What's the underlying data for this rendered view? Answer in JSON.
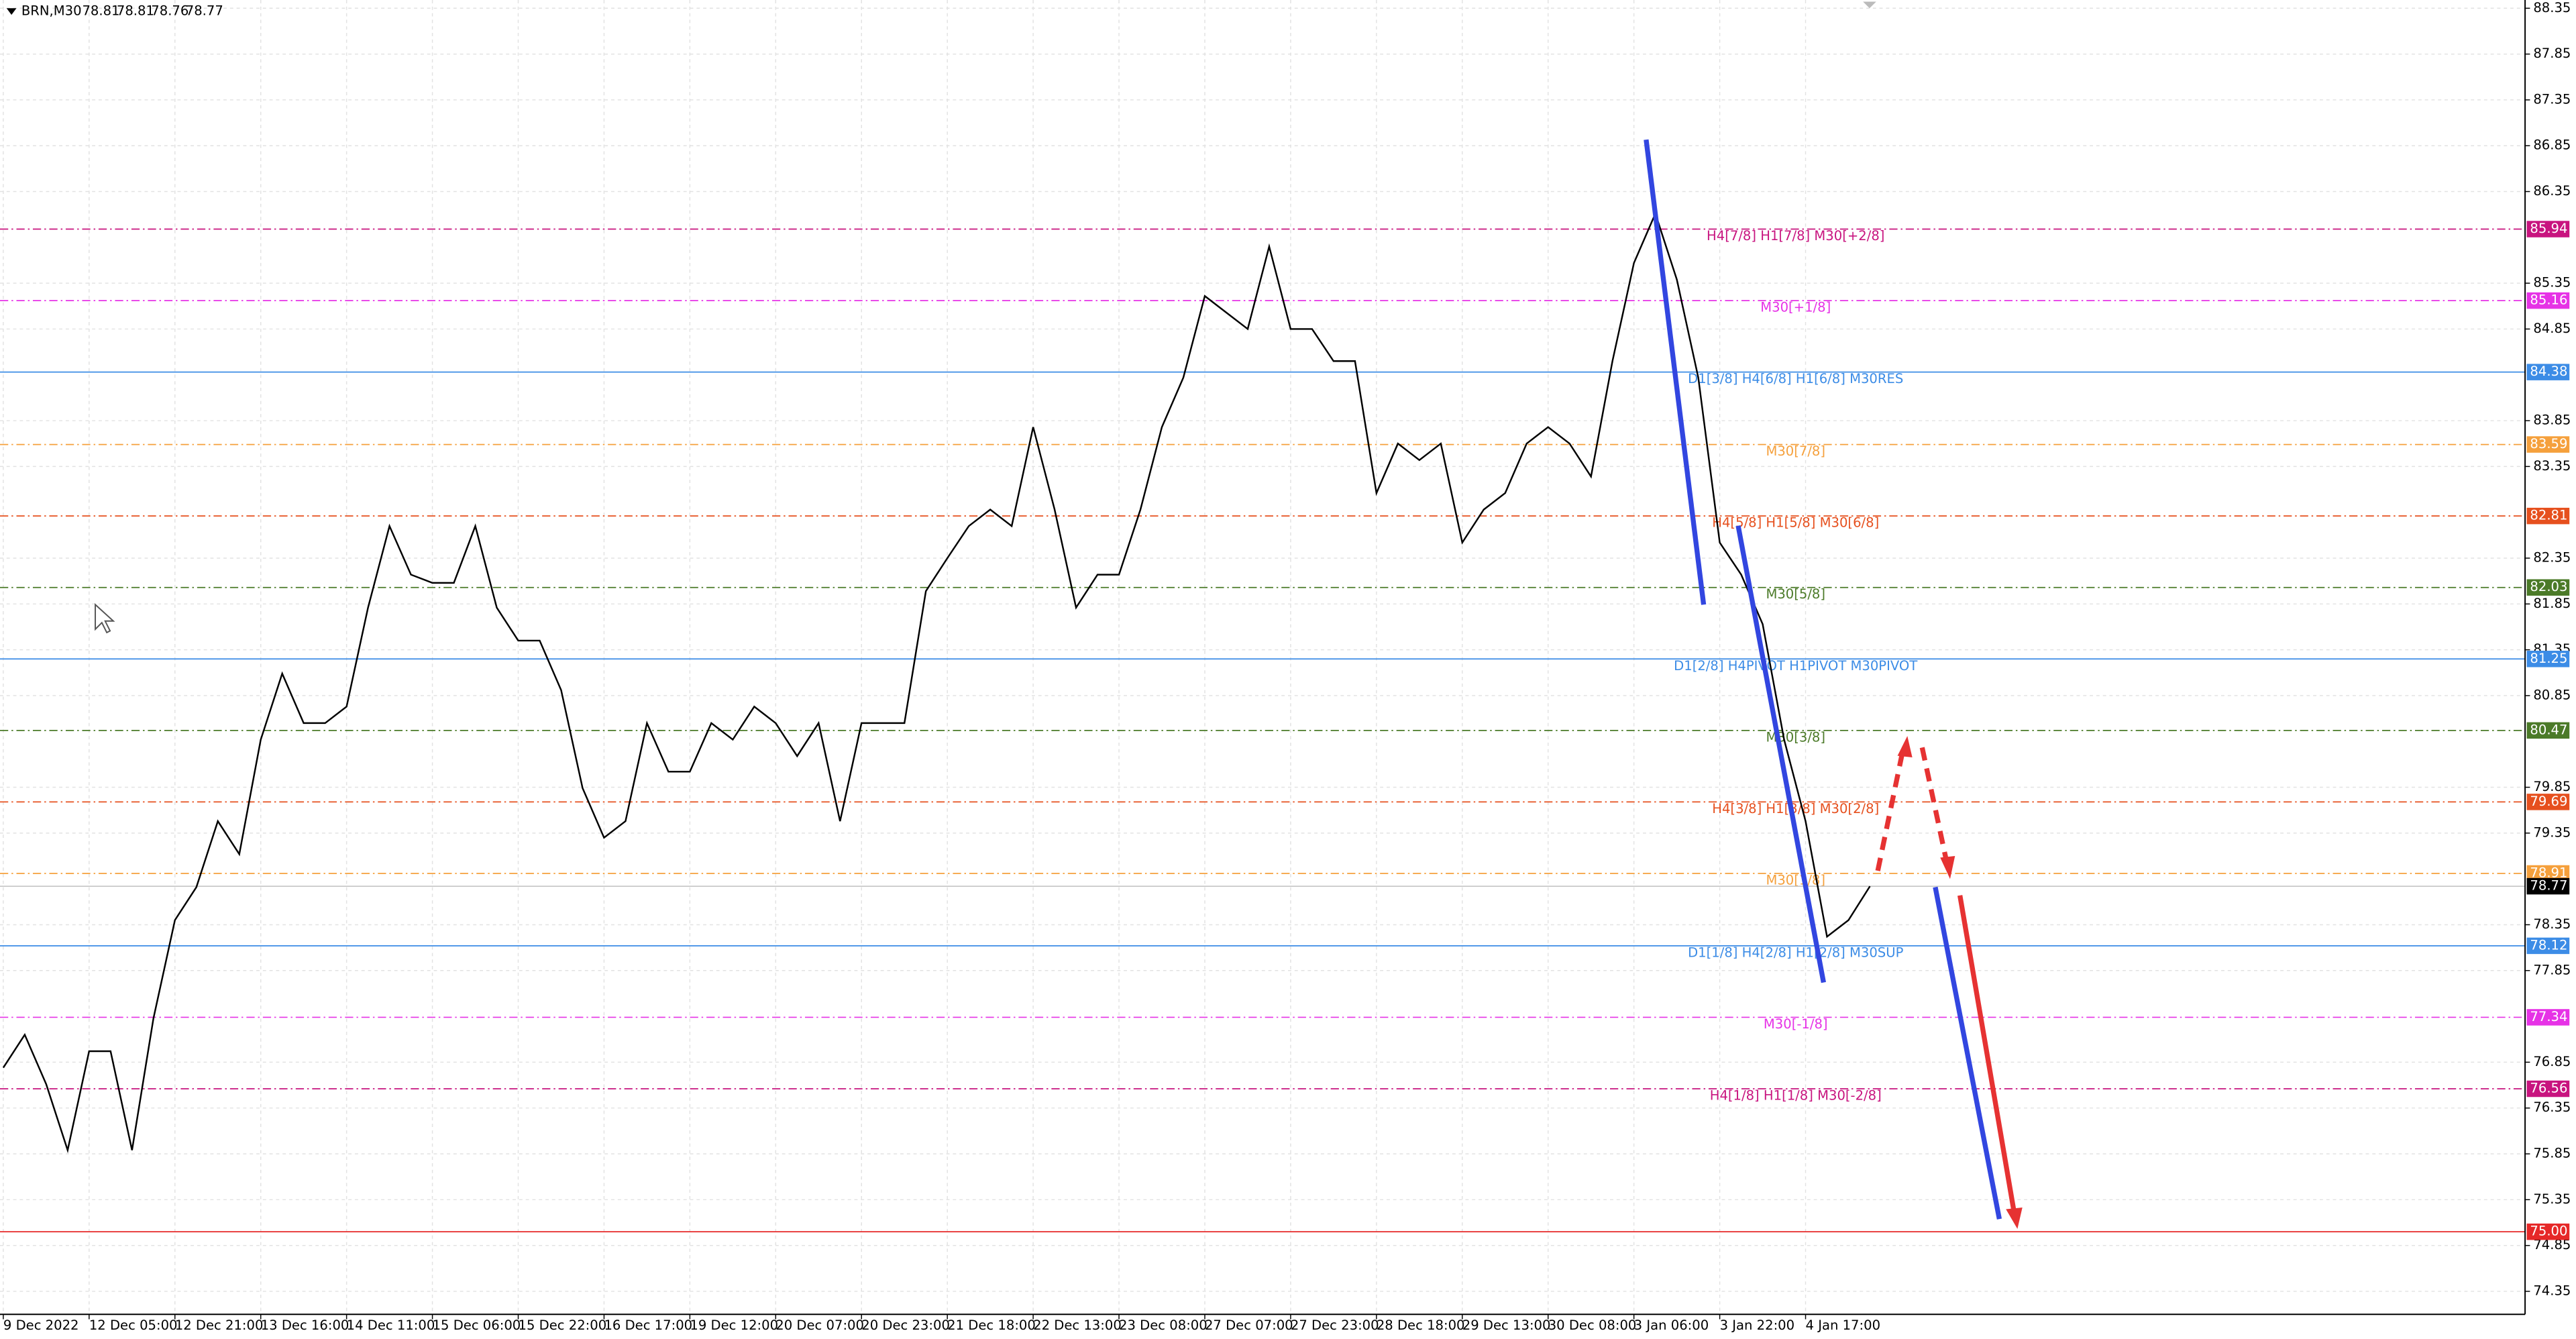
{
  "chart_data": {
    "type": "line",
    "symbol": "BRN,M30",
    "ohlc": [
      78.81,
      78.81,
      78.76,
      78.77
    ],
    "categories": [
      "9 Dec 2022",
      null,
      null,
      null,
      "12 Dec 05:00",
      null,
      null,
      null,
      "12 Dec 21:00",
      null,
      null,
      null,
      "13 Dec 16:00",
      null,
      null,
      null,
      "14 Dec 11:00",
      null,
      null,
      null,
      "15 Dec 06:00",
      null,
      null,
      null,
      "15 Dec 22:00",
      null,
      null,
      null,
      "16 Dec 17:00",
      null,
      null,
      null,
      "19 Dec 12:00",
      null,
      null,
      null,
      "20 Dec 07:00",
      null,
      null,
      null,
      "20 Dec 23:00",
      null,
      null,
      null,
      "21 Dec 18:00",
      null,
      null,
      null,
      "22 Dec 13:00",
      null,
      null,
      null,
      "23 Dec 08:00",
      null,
      null,
      null,
      "27 Dec 07:00",
      null,
      null,
      null,
      "27 Dec 23:00",
      null,
      null,
      null,
      "28 Dec 18:00",
      null,
      null,
      null,
      "29 Dec 13:00",
      null,
      null,
      null,
      "30 Dec 08:00",
      null,
      null,
      null,
      "3 Jan 06:00",
      null,
      null,
      null,
      "3 Jan 22:00",
      null,
      null,
      null,
      "4 Jan 17:00",
      null,
      null,
      null,
      null,
      null,
      null,
      null,
      null,
      null,
      null,
      null,
      null,
      null,
      null,
      null,
      null,
      null,
      null,
      null,
      null,
      null,
      null,
      null,
      null,
      null,
      null,
      null,
      null,
      null,
      null,
      null,
      null,
      null
    ],
    "values": [
      76.79,
      77.15,
      76.61,
      75.89,
      76.97,
      76.97,
      75.89,
      77.33,
      78.4,
      78.76,
      79.48,
      79.12,
      80.37,
      81.09,
      80.55,
      80.55,
      80.73,
      81.81,
      82.7,
      82.17,
      82.08,
      82.08,
      82.7,
      81.81,
      81.45,
      81.45,
      80.91,
      79.84,
      79.3,
      79.48,
      80.55,
      80.02,
      80.02,
      80.55,
      80.37,
      80.73,
      80.55,
      80.19,
      80.55,
      79.48,
      80.55,
      80.55,
      80.55,
      81.99,
      82.35,
      82.7,
      82.88,
      82.7,
      83.78,
      82.88,
      81.81,
      82.17,
      82.17,
      82.88,
      83.78,
      84.32,
      85.21,
      85.03,
      84.85,
      85.75,
      84.85,
      84.85,
      84.5,
      84.5,
      83.06,
      83.6,
      83.42,
      83.6,
      82.52,
      82.88,
      83.06,
      83.6,
      83.78,
      83.6,
      83.24,
      84.5,
      85.57,
      86.11,
      85.39,
      84.32,
      82.52,
      82.17,
      81.63,
      80.37,
      79.48,
      78.22,
      78.4,
      78.77,
      null,
      null,
      null,
      null,
      null,
      null,
      null,
      null,
      null,
      null,
      null,
      null,
      null,
      null,
      null,
      null,
      null,
      null,
      null,
      null,
      null,
      null,
      null,
      null,
      null,
      null,
      null,
      null,
      null,
      null
    ],
    "color": "#000000",
    "ylim": [
      74.35,
      88.35
    ],
    "yticks": [
      88.35,
      87.85,
      87.35,
      86.85,
      86.35,
      85.35,
      84.85,
      83.85,
      83.35,
      82.35,
      81.85,
      81.35,
      80.85,
      79.85,
      79.35,
      78.35,
      77.85,
      76.85,
      76.35,
      75.85,
      75.35,
      74.85,
      74.35
    ],
    "grid": true,
    "levels": [
      {
        "name": "H4[7/8] H1[7/8] M30[+2/8]",
        "value": 85.94,
        "color": "#c8147f",
        "style": "dashed"
      },
      {
        "name": "M30[+1/8]",
        "value": 85.16,
        "color": "#e632e6",
        "style": "dashed"
      },
      {
        "name": "D1[3/8] H4[6/8] H1[6/8] M30RES",
        "value": 84.38,
        "color": "#3c8ce6",
        "style": "solid"
      },
      {
        "name": "M30[7/8]",
        "value": 83.59,
        "color": "#f5a03c",
        "style": "dashed"
      },
      {
        "name": "H4[5/8] H1[5/8] M30[6/8]",
        "value": 82.81,
        "color": "#e6501e",
        "style": "dashed"
      },
      {
        "name": "M30[5/8]",
        "value": 82.03,
        "color": "#4b7a28",
        "style": "dashed"
      },
      {
        "name": "D1[2/8] H4PIVOT H1PIVOT M30PIVOT",
        "value": 81.25,
        "color": "#3c8ce6",
        "style": "solid"
      },
      {
        "name": "M30[3/8]",
        "value": 80.47,
        "color": "#4b7a28",
        "style": "dashed"
      },
      {
        "name": "H4[3/8] H1[3/8] M30[2/8]",
        "value": 79.69,
        "color": "#e6501e",
        "style": "dashed"
      },
      {
        "name": "M30[1/8]",
        "value": 78.91,
        "color": "#f5a03c",
        "style": "dashed"
      },
      {
        "name": "D1[1/8] H4[2/8] H1[2/8] M30SUP",
        "value": 78.12,
        "color": "#3c8ce6",
        "style": "solid"
      },
      {
        "name": "M30[-1/8]",
        "value": 77.34,
        "color": "#e632e6",
        "style": "dashed"
      },
      {
        "name": "H4[1/8] H1[1/8] M30[-2/8]",
        "value": 76.56,
        "color": "#c8147f",
        "style": "dashed"
      },
      {
        "value": 75,
        "value_label": "75.00",
        "color": "#e62828",
        "style": "solid"
      }
    ]
  }
}
